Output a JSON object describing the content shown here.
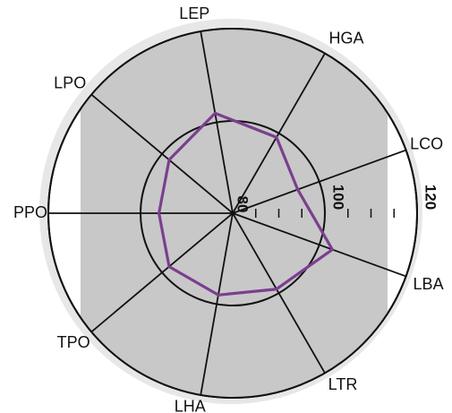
{
  "chart_data": {
    "type": "radar",
    "title": "",
    "axes": [
      "LEP",
      "HGA",
      "LCO",
      "LBA",
      "LTR",
      "LHA",
      "TPO",
      "PPO",
      "LPO"
    ],
    "axis_angles_deg": [
      100,
      60,
      20,
      -20,
      -60,
      -100,
      -140,
      180,
      140
    ],
    "scale": {
      "center_value": 80,
      "max_value": 120,
      "rings": [
        100,
        120
      ],
      "tick_labels": [
        "80",
        "100",
        "120"
      ]
    },
    "series": [
      {
        "color": "#7B3F8E",
        "values": [
          102,
          99,
          95,
          103,
          99,
          98,
          98,
          96,
          98
        ]
      }
    ],
    "colors": {
      "shaded_band": "#C8C8C8",
      "axis_lines": "#111111",
      "outer_background": "#E5E5E5"
    }
  }
}
